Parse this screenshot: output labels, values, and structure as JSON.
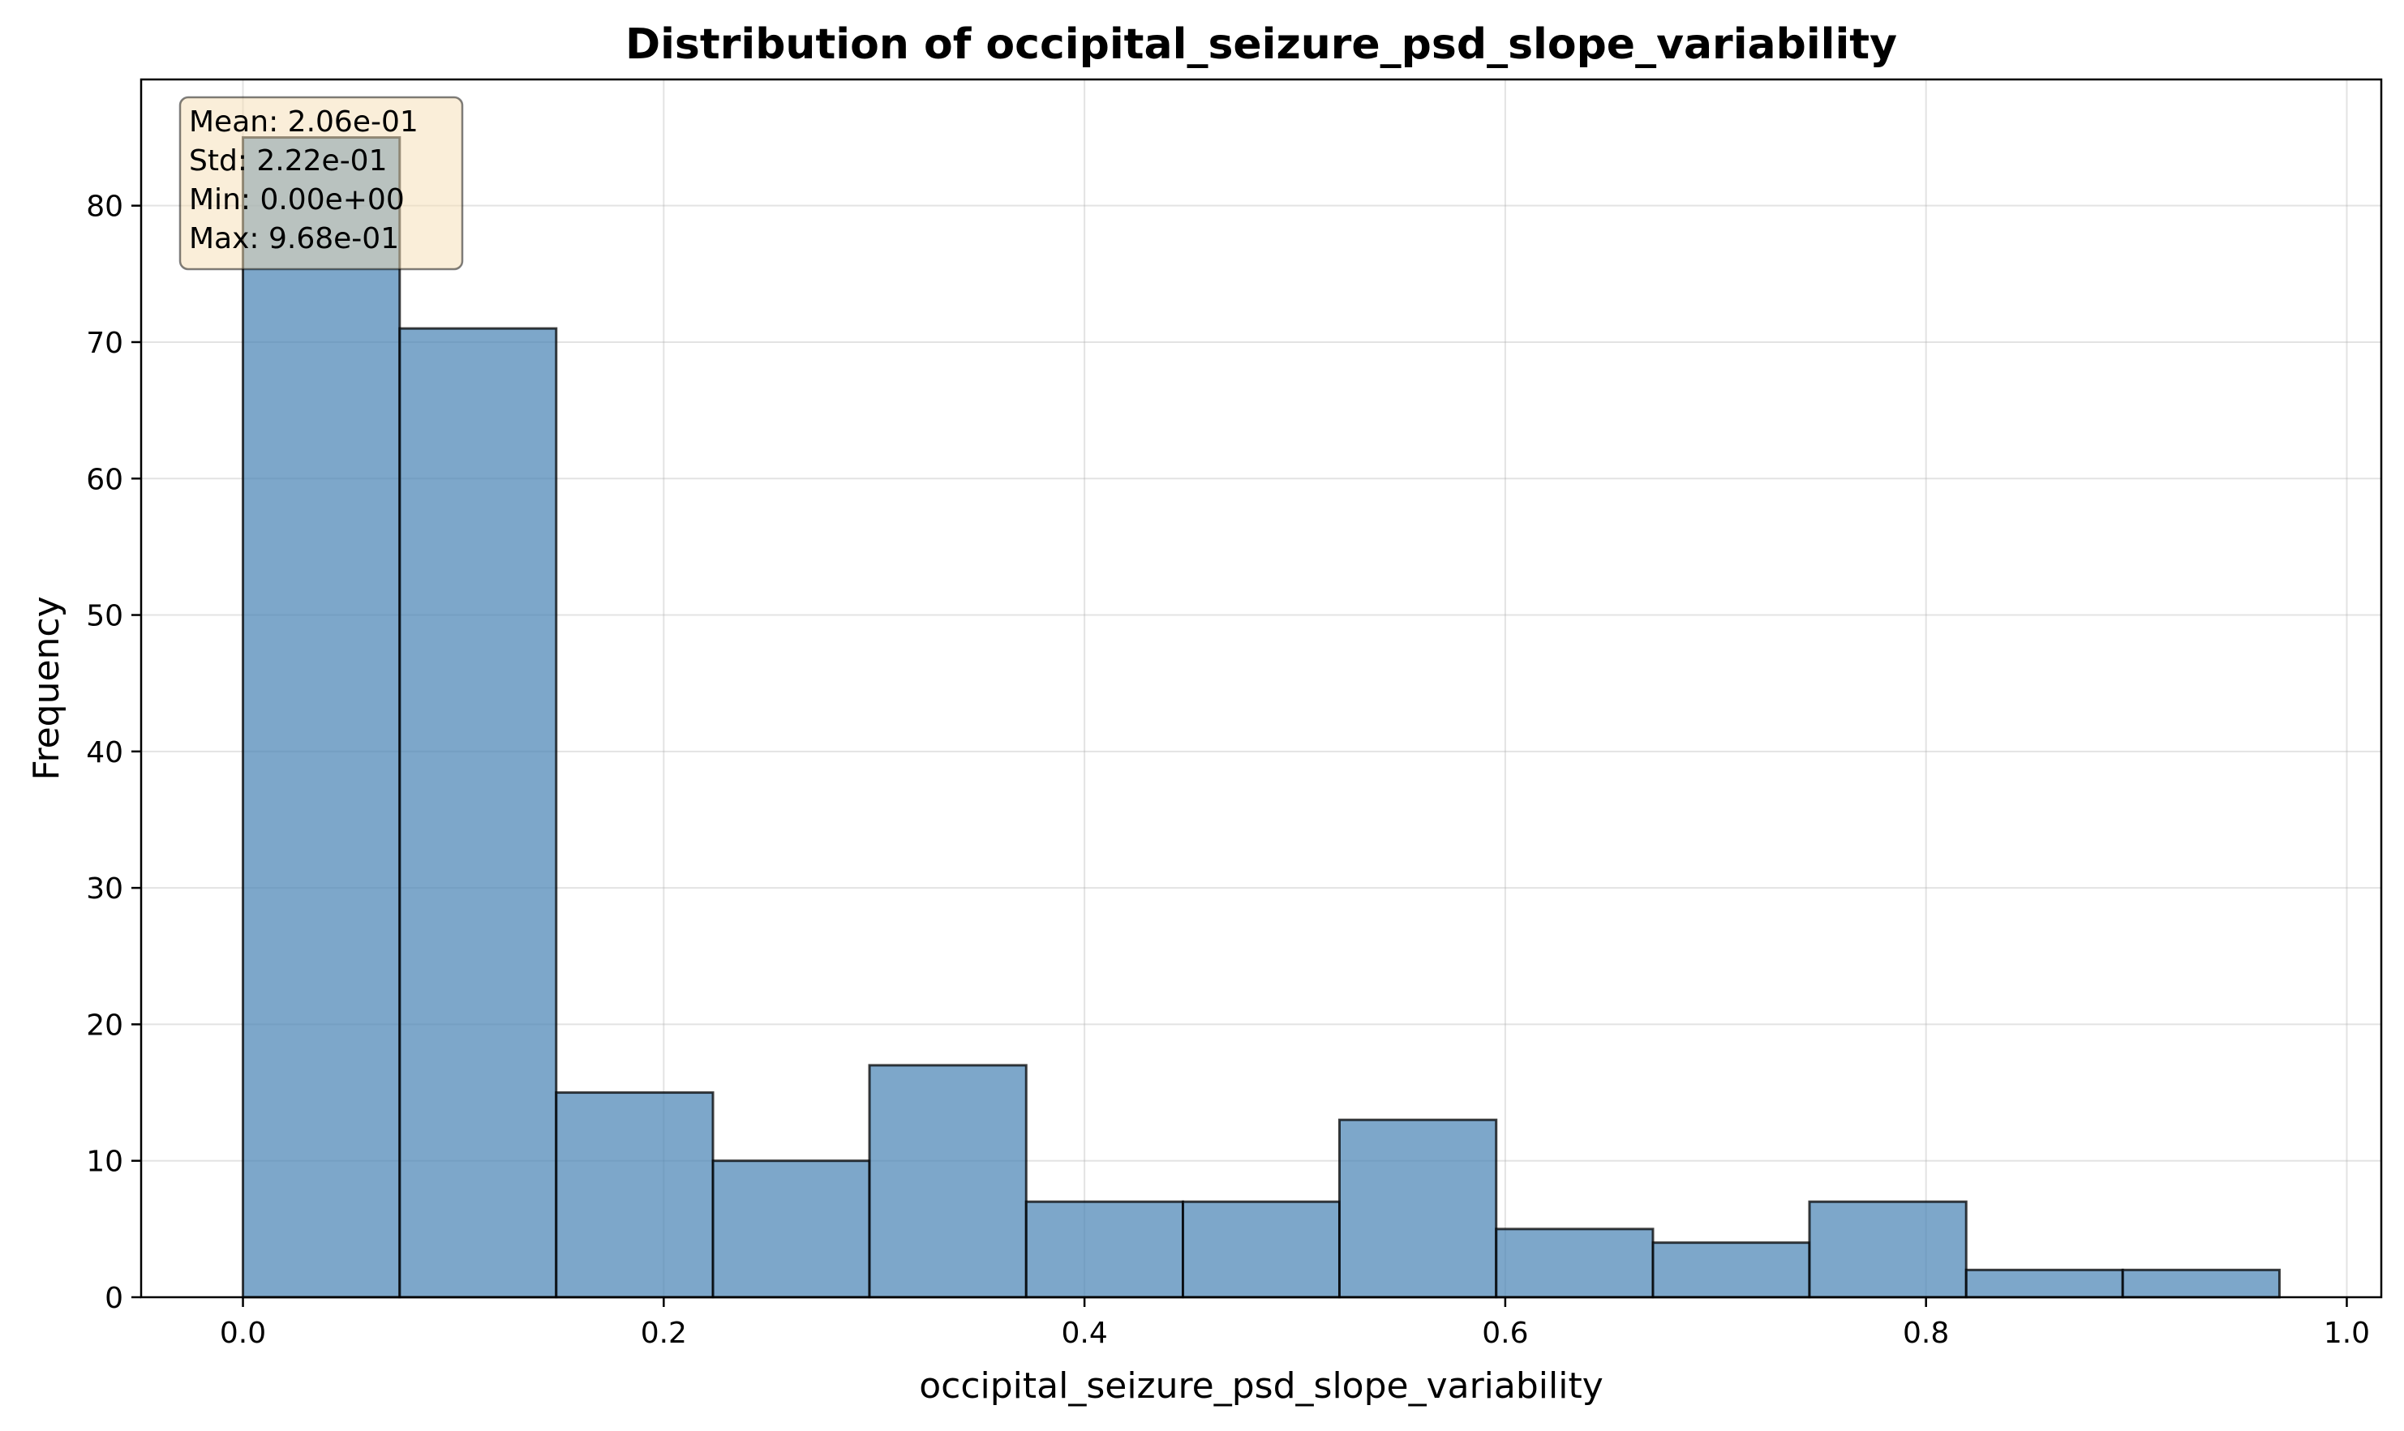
{
  "chart_data": {
    "type": "bar",
    "title": "Distribution of occipital_seizure_psd_slope_variability",
    "xlabel": "occipital_seizure_psd_slope_variability",
    "ylabel": "Frequency",
    "xlim": [
      -0.0484,
      1.0164
    ],
    "ylim": [
      0,
      89.25
    ],
    "xticks": [
      0.0,
      0.2,
      0.4,
      0.6,
      0.8,
      1.0
    ],
    "xtick_labels": [
      "0.0",
      "0.2",
      "0.4",
      "0.6",
      "0.8",
      "1.0"
    ],
    "yticks": [
      0,
      10,
      20,
      30,
      40,
      50,
      60,
      70,
      80
    ],
    "ytick_labels": [
      "0",
      "10",
      "20",
      "30",
      "40",
      "50",
      "60",
      "70",
      "80"
    ],
    "bin_edges": [
      0.0,
      0.0745,
      0.1489,
      0.2234,
      0.2978,
      0.3723,
      0.4468,
      0.5212,
      0.5957,
      0.6702,
      0.7446,
      0.8191,
      0.8935,
      0.968
    ],
    "values": [
      85,
      71,
      15,
      10,
      17,
      7,
      7,
      13,
      5,
      4,
      7,
      2,
      2
    ],
    "grid": true,
    "bar_color": "#4682b4",
    "stats": [
      "Mean: 2.06e-01",
      "Std: 2.22e-01",
      "Min: 0.00e+00",
      "Max: 9.68e-01"
    ],
    "stats_box_color": "#f5deb3",
    "stats_box_placement": "top-left"
  }
}
